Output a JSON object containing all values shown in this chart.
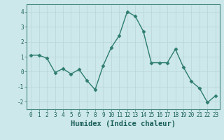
{
  "x": [
    0,
    1,
    2,
    3,
    4,
    5,
    6,
    7,
    8,
    9,
    10,
    11,
    12,
    13,
    14,
    15,
    16,
    17,
    18,
    19,
    20,
    21,
    22,
    23
  ],
  "y": [
    1.1,
    1.1,
    0.9,
    -0.05,
    0.2,
    -0.15,
    0.15,
    -0.6,
    -1.2,
    0.4,
    1.6,
    2.4,
    4.0,
    3.7,
    2.7,
    0.6,
    0.6,
    0.6,
    1.5,
    0.3,
    -0.65,
    -1.1,
    -2.05,
    -1.6
  ],
  "line_color": "#2e7d6e",
  "marker": "D",
  "markersize": 2.5,
  "linewidth": 1.0,
  "xlabel": "Humidex (Indice chaleur)",
  "xlim": [
    -0.5,
    23.5
  ],
  "ylim": [
    -2.5,
    4.5
  ],
  "yticks": [
    -2,
    -1,
    0,
    1,
    2,
    3,
    4
  ],
  "xticks": [
    0,
    1,
    2,
    3,
    4,
    5,
    6,
    7,
    8,
    9,
    10,
    11,
    12,
    13,
    14,
    15,
    16,
    17,
    18,
    19,
    20,
    21,
    22,
    23
  ],
  "bg_color": "#cde8ea",
  "grid_color": "#b8d4d6",
  "tick_color": "#1a5f5a",
  "label_color": "#1a5f5a",
  "xlabel_fontsize": 7.5,
  "tick_fontsize": 5.5,
  "spine_color": "#4a8a85"
}
